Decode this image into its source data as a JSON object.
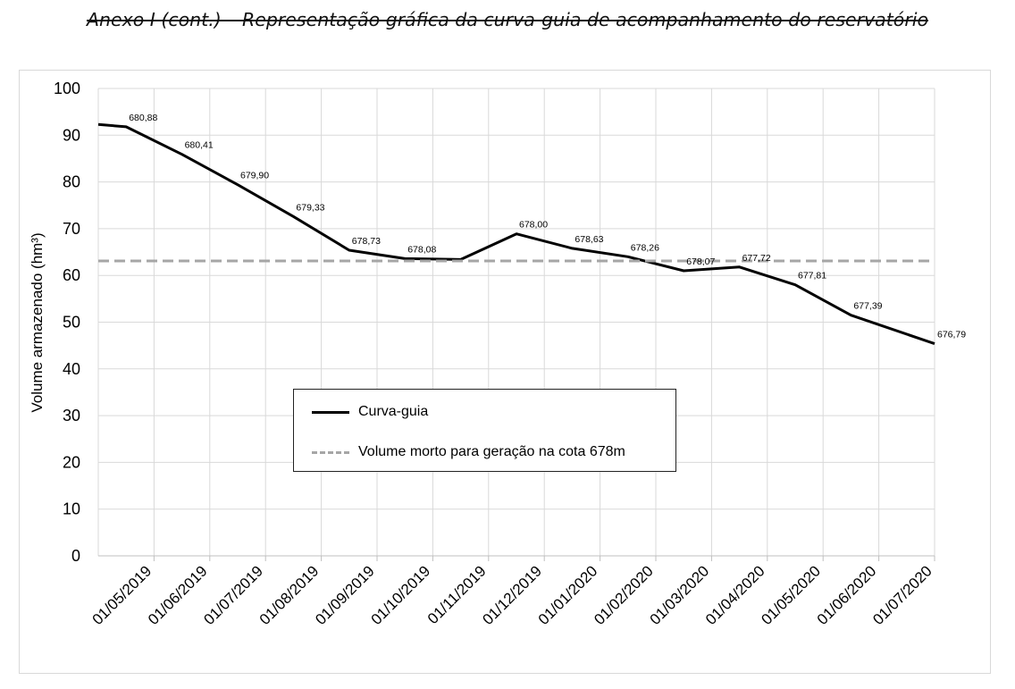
{
  "page": {
    "title": "Anexo I (cont.) – Representação gráfica da curva-guia de acompanhamento do reservatório"
  },
  "chart_data": {
    "type": "line",
    "title": "",
    "xlabel": "",
    "ylabel": "Volume armazenado (hm³)",
    "ylim": [
      0,
      100
    ],
    "yticks": [
      0,
      10,
      20,
      30,
      40,
      50,
      60,
      70,
      80,
      90,
      100
    ],
    "grid": true,
    "legend_position": "center",
    "categories": [
      "01/05/2019",
      "01/06/2019",
      "01/07/2019",
      "01/08/2019",
      "01/09/2019",
      "01/10/2019",
      "01/11/2019",
      "01/12/2019",
      "01/01/2020",
      "01/02/2020",
      "01/03/2020",
      "01/04/2020",
      "01/05/2020",
      "01/06/2020",
      "01/07/2020"
    ],
    "series": [
      {
        "name": "Curva-guia",
        "style": "solid",
        "color": "#000000",
        "points": [
          {
            "x": 0.0,
            "y": 92.3,
            "label": ""
          },
          {
            "x": 0.5,
            "y": 91.8,
            "label": "680,88"
          },
          {
            "x": 1.5,
            "y": 85.9,
            "label": "680,41"
          },
          {
            "x": 2.5,
            "y": 79.4,
            "label": "679,90"
          },
          {
            "x": 3.5,
            "y": 72.6,
            "label": "679,33"
          },
          {
            "x": 4.5,
            "y": 65.4,
            "label": "678,73"
          },
          {
            "x": 5.5,
            "y": 63.6,
            "label": "678,08"
          },
          {
            "x": 6.5,
            "y": 63.4,
            "label": ""
          },
          {
            "x": 7.5,
            "y": 68.9,
            "label": "678,00"
          },
          {
            "x": 8.5,
            "y": 65.8,
            "label": "678,63"
          },
          {
            "x": 9.5,
            "y": 64.0,
            "label": "678,26"
          },
          {
            "x": 10.5,
            "y": 61.0,
            "label": "678,07"
          },
          {
            "x": 11.5,
            "y": 61.8,
            "label": "677,72"
          },
          {
            "x": 12.5,
            "y": 58.0,
            "label": "677,81"
          },
          {
            "x": 13.5,
            "y": 51.5,
            "label": "677,39"
          },
          {
            "x": 15.0,
            "y": 45.4,
            "label": "676,79"
          }
        ]
      },
      {
        "name": "Volume morto para geração na cota 678m",
        "style": "dashed",
        "color": "#a6a6a6",
        "points": [
          {
            "x": 0.0,
            "y": 63.1
          },
          {
            "x": 15.0,
            "y": 63.1
          }
        ]
      }
    ]
  }
}
